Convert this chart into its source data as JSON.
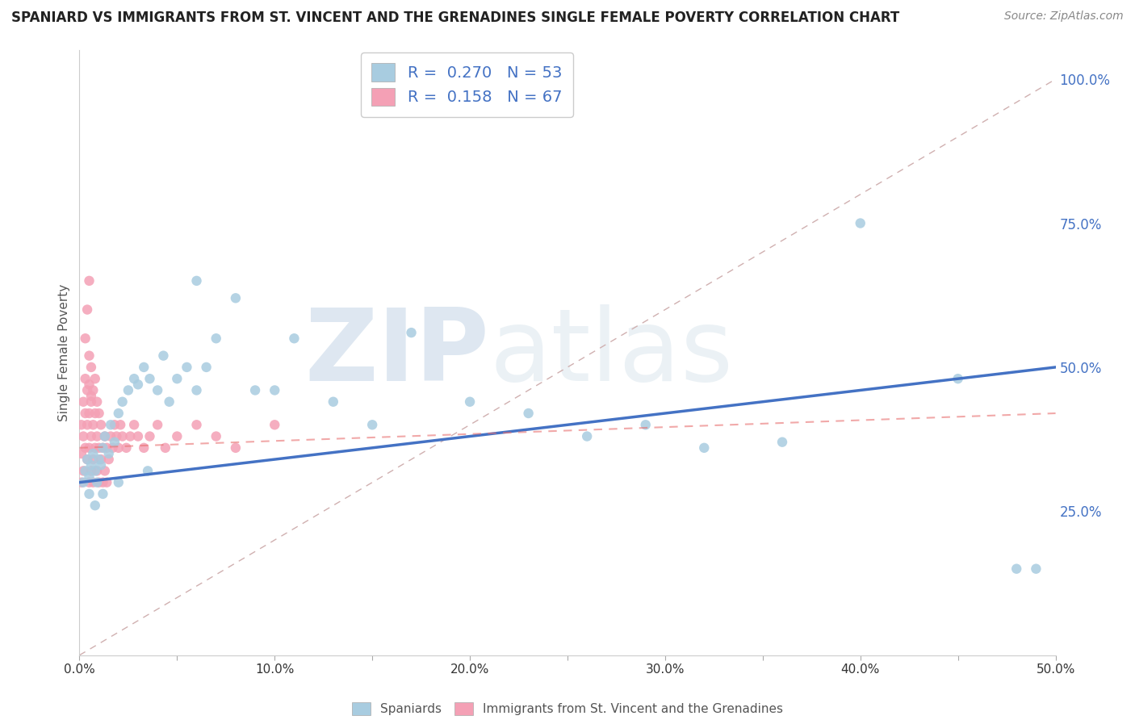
{
  "title": "SPANIARD VS IMMIGRANTS FROM ST. VINCENT AND THE GRENADINES SINGLE FEMALE POVERTY CORRELATION CHART",
  "source": "Source: ZipAtlas.com",
  "ylabel": "Single Female Poverty",
  "watermark_zip": "ZIP",
  "watermark_atlas": "atlas",
  "xlim": [
    0.0,
    0.5
  ],
  "ylim": [
    0.0,
    1.05
  ],
  "xtick_labels": [
    "0.0%",
    "",
    "10.0%",
    "",
    "20.0%",
    "",
    "30.0%",
    "",
    "40.0%",
    "",
    "50.0%"
  ],
  "xtick_vals": [
    0.0,
    0.05,
    0.1,
    0.15,
    0.2,
    0.25,
    0.3,
    0.35,
    0.4,
    0.45,
    0.5
  ],
  "ytick_labels": [
    "25.0%",
    "50.0%",
    "75.0%",
    "100.0%"
  ],
  "ytick_vals": [
    0.25,
    0.5,
    0.75,
    1.0
  ],
  "spaniards_color": "#a8cce0",
  "immigrants_color": "#f4a0b5",
  "spaniards_R": 0.27,
  "spaniards_N": 53,
  "immigrants_R": 0.158,
  "immigrants_N": 67,
  "legend_label_1": "Spaniards",
  "legend_label_2": "Immigrants from St. Vincent and the Grenadines",
  "spaniards_x": [
    0.002,
    0.003,
    0.004,
    0.005,
    0.006,
    0.007,
    0.008,
    0.009,
    0.01,
    0.011,
    0.012,
    0.013,
    0.015,
    0.016,
    0.018,
    0.02,
    0.022,
    0.025,
    0.028,
    0.03,
    0.033,
    0.036,
    0.04,
    0.043,
    0.046,
    0.05,
    0.055,
    0.06,
    0.065,
    0.07,
    0.08,
    0.09,
    0.1,
    0.11,
    0.13,
    0.15,
    0.17,
    0.2,
    0.23,
    0.26,
    0.29,
    0.32,
    0.36,
    0.4,
    0.45,
    0.48,
    0.49,
    0.005,
    0.008,
    0.012,
    0.02,
    0.035,
    0.06
  ],
  "spaniards_y": [
    0.3,
    0.32,
    0.34,
    0.31,
    0.33,
    0.35,
    0.32,
    0.3,
    0.34,
    0.33,
    0.36,
    0.38,
    0.35,
    0.4,
    0.37,
    0.42,
    0.44,
    0.46,
    0.48,
    0.47,
    0.5,
    0.48,
    0.46,
    0.52,
    0.44,
    0.48,
    0.5,
    0.46,
    0.5,
    0.55,
    0.62,
    0.46,
    0.46,
    0.55,
    0.44,
    0.4,
    0.56,
    0.44,
    0.42,
    0.38,
    0.4,
    0.36,
    0.37,
    0.75,
    0.48,
    0.15,
    0.15,
    0.28,
    0.26,
    0.28,
    0.3,
    0.32,
    0.65
  ],
  "immigrants_x": [
    0.001,
    0.001,
    0.001,
    0.002,
    0.002,
    0.002,
    0.003,
    0.003,
    0.003,
    0.004,
    0.004,
    0.004,
    0.005,
    0.005,
    0.005,
    0.005,
    0.005,
    0.006,
    0.006,
    0.006,
    0.006,
    0.007,
    0.007,
    0.007,
    0.007,
    0.008,
    0.008,
    0.008,
    0.009,
    0.009,
    0.009,
    0.01,
    0.01,
    0.01,
    0.011,
    0.011,
    0.012,
    0.012,
    0.013,
    0.013,
    0.014,
    0.014,
    0.015,
    0.016,
    0.017,
    0.018,
    0.019,
    0.02,
    0.021,
    0.022,
    0.024,
    0.026,
    0.028,
    0.03,
    0.033,
    0.036,
    0.04,
    0.044,
    0.05,
    0.06,
    0.07,
    0.08,
    0.1,
    0.003,
    0.004,
    0.005,
    0.006
  ],
  "immigrants_y": [
    0.3,
    0.35,
    0.4,
    0.32,
    0.38,
    0.44,
    0.36,
    0.42,
    0.48,
    0.34,
    0.4,
    0.46,
    0.3,
    0.36,
    0.42,
    0.47,
    0.52,
    0.32,
    0.38,
    0.44,
    0.5,
    0.34,
    0.4,
    0.46,
    0.3,
    0.36,
    0.42,
    0.48,
    0.32,
    0.38,
    0.44,
    0.3,
    0.36,
    0.42,
    0.34,
    0.4,
    0.3,
    0.36,
    0.32,
    0.38,
    0.3,
    0.36,
    0.34,
    0.38,
    0.36,
    0.4,
    0.38,
    0.36,
    0.4,
    0.38,
    0.36,
    0.38,
    0.4,
    0.38,
    0.36,
    0.38,
    0.4,
    0.36,
    0.38,
    0.4,
    0.38,
    0.36,
    0.4,
    0.55,
    0.6,
    0.65,
    0.45
  ],
  "background_color": "#ffffff",
  "grid_color": "#d0d0d0",
  "ref_line_color": "#d0b0b0",
  "spaniard_line_color": "#4472c4",
  "immigrant_line_color": "#e87070"
}
